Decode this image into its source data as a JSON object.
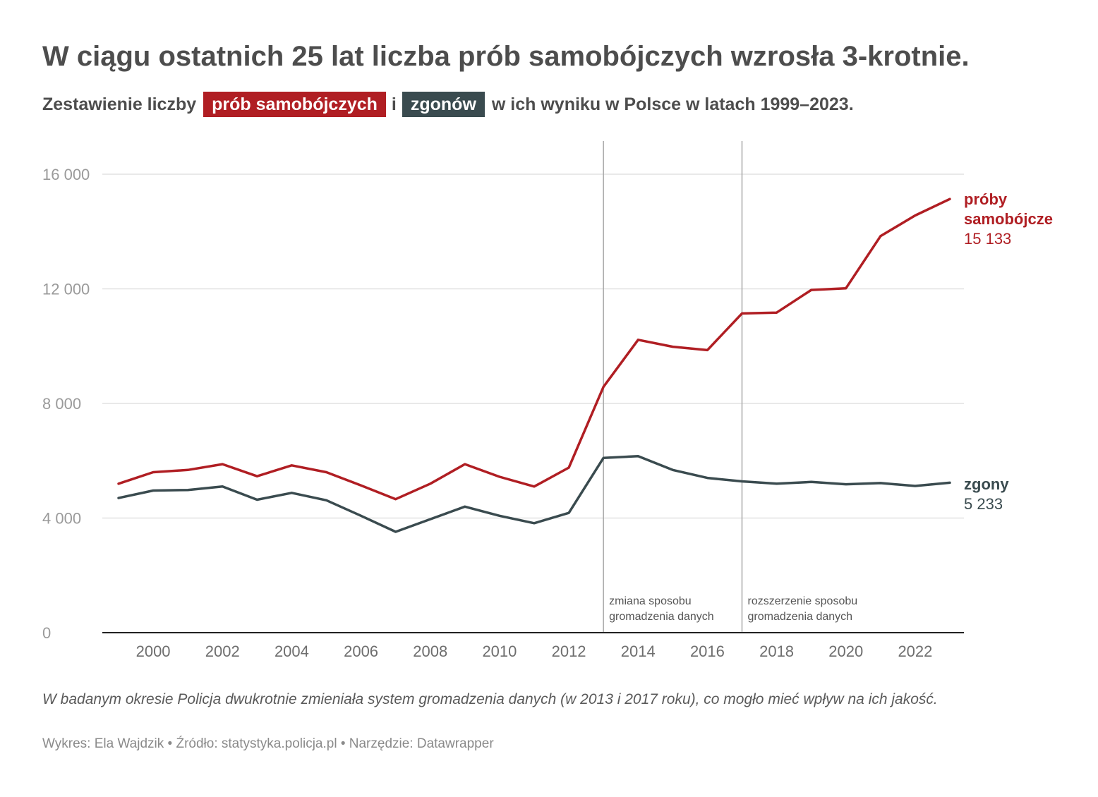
{
  "header": {
    "title": "W ciągu ostatnich 25 lat liczba prób samobójczych wzrosła 3-krotnie.",
    "subtitle_prefix": "Zestawienie liczby",
    "subtitle_pill_attempts": "prób samobójczych",
    "subtitle_conj": "i",
    "subtitle_pill_deaths": "zgonów",
    "subtitle_suffix": "w ich wyniku w Polsce w latach 1999–2023."
  },
  "colors": {
    "attempts": "#b01e23",
    "deaths": "#3a4b4f",
    "grid": "#e2e2e2",
    "axis_text": "#9a9a9a",
    "vline": "#a8a8a8"
  },
  "chart_data": {
    "type": "line",
    "x": [
      1999,
      2000,
      2001,
      2002,
      2003,
      2004,
      2005,
      2006,
      2007,
      2008,
      2009,
      2010,
      2011,
      2012,
      2013,
      2014,
      2015,
      2016,
      2017,
      2018,
      2019,
      2020,
      2021,
      2022,
      2023
    ],
    "series": [
      {
        "key": "attempts",
        "label_lines": [
          "próby",
          "samobójcze"
        ],
        "value_label": "15 133",
        "values": [
          5200,
          5600,
          5680,
          5880,
          5460,
          5840,
          5600,
          5140,
          4660,
          5200,
          5880,
          5440,
          5100,
          5760,
          8580,
          10220,
          9980,
          9860,
          11140,
          11170,
          11960,
          12020,
          13840,
          14560,
          15133
        ]
      },
      {
        "key": "deaths",
        "label_lines": [
          "zgony"
        ],
        "value_label": "5 233",
        "values": [
          4700,
          4960,
          4980,
          5100,
          4640,
          4880,
          4620,
          4080,
          3520,
          3960,
          4400,
          4080,
          3820,
          4180,
          6100,
          6160,
          5680,
          5400,
          5280,
          5200,
          5260,
          5180,
          5220,
          5120,
          5233
        ]
      }
    ],
    "ylim": [
      0,
      16000
    ],
    "y_ticks": [
      0,
      4000,
      8000,
      12000,
      16000
    ],
    "y_tick_labels": [
      "0",
      "4 000",
      "8 000",
      "12 000",
      "16 000"
    ],
    "x_ticks": [
      2000,
      2002,
      2004,
      2006,
      2008,
      2010,
      2012,
      2014,
      2016,
      2018,
      2020,
      2022
    ],
    "x_tick_labels": [
      "2000",
      "2002",
      "2004",
      "2006",
      "2008",
      "2010",
      "2012",
      "2014",
      "2016",
      "2018",
      "2020",
      "2022"
    ],
    "annotations": [
      {
        "x": 2013,
        "lines": [
          "zmiana sposobu",
          "gromadzenia danych"
        ]
      },
      {
        "x": 2017,
        "lines": [
          "rozszerzenie sposobu",
          "gromadzenia danych"
        ]
      }
    ],
    "grid": true
  },
  "notes": "W badanym okresie Policja dwukrotnie zmieniała system gromadzenia danych (w 2013 i 2017 roku), co mogło mieć wpływ na ich jakość.",
  "footer": "Wykres: Ela Wajdzik • Źródło: statystyka.policja.pl • Narzędzie: Datawrapper"
}
